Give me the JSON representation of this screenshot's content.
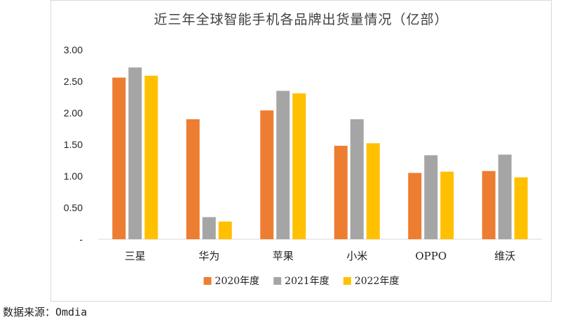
{
  "chart_data": {
    "type": "bar",
    "title": "近三年全球智能手机各品牌出货量情况（亿部）",
    "categories": [
      "三星",
      "华为",
      "苹果",
      "小米",
      "OPPO",
      "维沃"
    ],
    "series": [
      {
        "name": "2020年度",
        "color": "#ed7d31",
        "values": [
          2.56,
          1.9,
          2.04,
          1.48,
          1.05,
          1.08
        ]
      },
      {
        "name": "2021年度",
        "color": "#a5a5a5",
        "values": [
          2.72,
          0.35,
          2.35,
          1.9,
          1.33,
          1.34
        ]
      },
      {
        "name": "2022年度",
        "color": "#ffc000",
        "values": [
          2.59,
          0.28,
          2.31,
          1.52,
          1.07,
          0.98
        ]
      }
    ],
    "y_ticks": [
      "-",
      "0.50",
      "1.00",
      "1.50",
      "2.00",
      "2.50",
      "3.00"
    ],
    "ylim": [
      0,
      3
    ],
    "grid": false,
    "legend": "bottom"
  },
  "source": "数据来源：Omdia"
}
